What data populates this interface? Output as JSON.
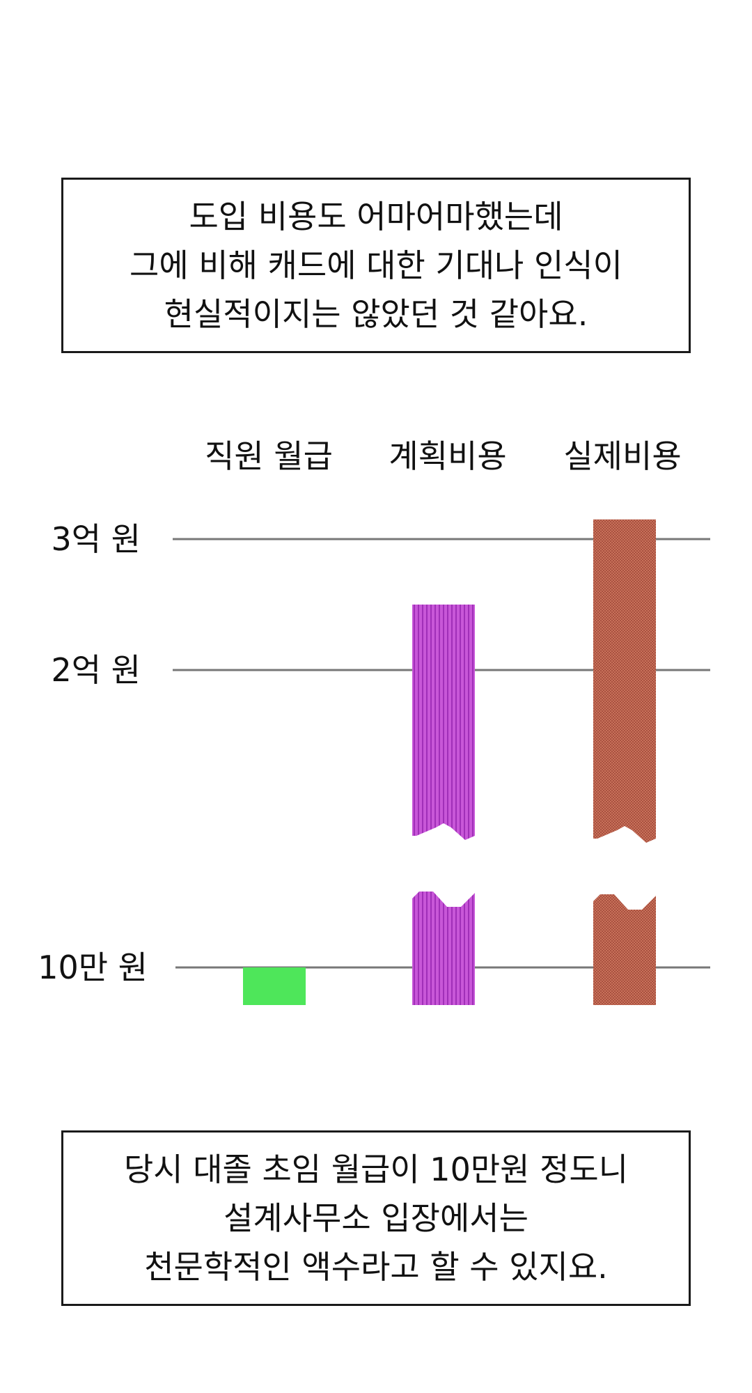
{
  "caption_top": {
    "lines": [
      "도입 비용도 어마어마했는데",
      "그에 비해 캐드에 대한 기대나 인식이",
      "현실적이지는 않았던 것 같아요."
    ]
  },
  "caption_bottom": {
    "lines": [
      "당시 대졸 초임 월급이 10만원 정도니",
      "설계사무소 입장에서는",
      "천문학적인 액수라고 할 수 있지요."
    ]
  },
  "colors": {
    "salary": "#4ee65a",
    "planned": "#c857d8",
    "planned_stripe": "#a02fb8",
    "actual": "#c8725a",
    "actual_dot": "#a85040",
    "gridline": "#777777"
  },
  "chart_data": {
    "type": "bar",
    "categories": [
      "직원 월급",
      "계획비용",
      "실제비용"
    ],
    "y_ticks": [
      {
        "label": "10만 원",
        "value": 100000
      },
      {
        "label": "2억 원",
        "value": 200000000
      },
      {
        "label": "3억 원",
        "value": 300000000
      }
    ],
    "values": [
      100000,
      250000000,
      315000000
    ],
    "axis_break": true,
    "grid": true
  }
}
